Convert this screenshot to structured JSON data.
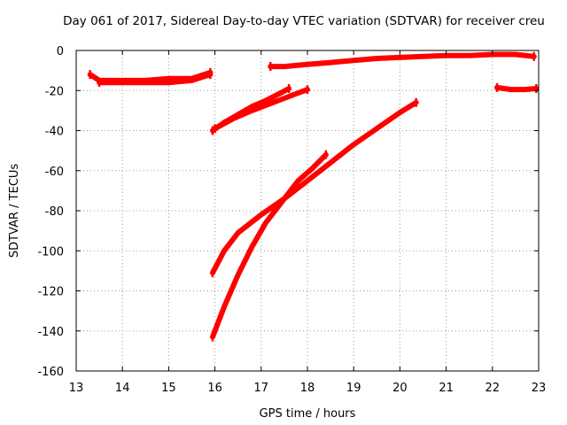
{
  "chart_data": {
    "type": "scatter",
    "title": "Day 061 of 2017, Sidereal Day-to-day VTEC variation (SDTVAR) for receiver creu",
    "xlabel": "GPS time / hours",
    "ylabel": "SDTVAR / TECUs",
    "xlim": [
      13,
      23
    ],
    "ylim": [
      -160,
      0
    ],
    "x_ticks": [
      "13",
      "14",
      "15",
      "16",
      "17",
      "18",
      "19",
      "20",
      "21",
      "22",
      "23"
    ],
    "y_ticks": [
      "0",
      "-20",
      "-40",
      "-60",
      "-80",
      "-100",
      "-120",
      "-140",
      "-160"
    ],
    "grid": true,
    "series_color": "#ff0000",
    "series": [
      {
        "values": [
          [
            13.3,
            -12
          ],
          [
            13.5,
            -15
          ],
          [
            14.0,
            -15
          ],
          [
            14.5,
            -15
          ],
          [
            15.0,
            -14
          ],
          [
            15.5,
            -14
          ],
          [
            15.9,
            -11
          ]
        ]
      },
      {
        "values": [
          [
            13.5,
            -16
          ],
          [
            14.0,
            -16
          ],
          [
            14.5,
            -16
          ],
          [
            15.0,
            -16
          ],
          [
            15.5,
            -15
          ],
          [
            15.9,
            -12
          ]
        ]
      },
      {
        "values": [
          [
            17.2,
            -8
          ],
          [
            17.5,
            -8
          ],
          [
            18.0,
            -7
          ],
          [
            18.5,
            -6
          ],
          [
            19.0,
            -5
          ],
          [
            19.5,
            -4
          ],
          [
            20.0,
            -3.5
          ],
          [
            20.5,
            -3
          ],
          [
            21.0,
            -2.5
          ],
          [
            21.5,
            -2.5
          ],
          [
            22.0,
            -2
          ],
          [
            22.5,
            -2
          ],
          [
            22.9,
            -3
          ]
        ]
      },
      {
        "values": [
          [
            22.1,
            -18.5
          ],
          [
            22.4,
            -19.5
          ],
          [
            22.7,
            -19.5
          ],
          [
            22.95,
            -19
          ]
        ]
      },
      {
        "values": [
          [
            15.95,
            -40
          ],
          [
            16.2,
            -36
          ],
          [
            16.5,
            -32
          ],
          [
            16.8,
            -28
          ],
          [
            17.1,
            -25
          ],
          [
            17.4,
            -21.5
          ],
          [
            17.6,
            -19
          ]
        ]
      },
      {
        "values": [
          [
            16.0,
            -39
          ],
          [
            16.4,
            -34
          ],
          [
            16.8,
            -30
          ],
          [
            17.2,
            -26.5
          ],
          [
            17.6,
            -23
          ],
          [
            18.0,
            -19.5
          ]
        ]
      },
      {
        "values": [
          [
            15.95,
            -111
          ],
          [
            16.2,
            -100
          ],
          [
            16.5,
            -91
          ],
          [
            17.0,
            -82
          ],
          [
            17.5,
            -74
          ],
          [
            18.0,
            -65
          ],
          [
            18.5,
            -56
          ],
          [
            19.0,
            -47
          ],
          [
            19.5,
            -39
          ],
          [
            20.0,
            -31
          ],
          [
            20.35,
            -26
          ]
        ]
      },
      {
        "values": [
          [
            15.95,
            -143
          ],
          [
            16.2,
            -128
          ],
          [
            16.5,
            -112
          ],
          [
            16.8,
            -98
          ],
          [
            17.1,
            -86
          ],
          [
            17.5,
            -74
          ],
          [
            17.8,
            -65
          ],
          [
            18.1,
            -59
          ],
          [
            18.4,
            -52
          ]
        ]
      }
    ]
  }
}
